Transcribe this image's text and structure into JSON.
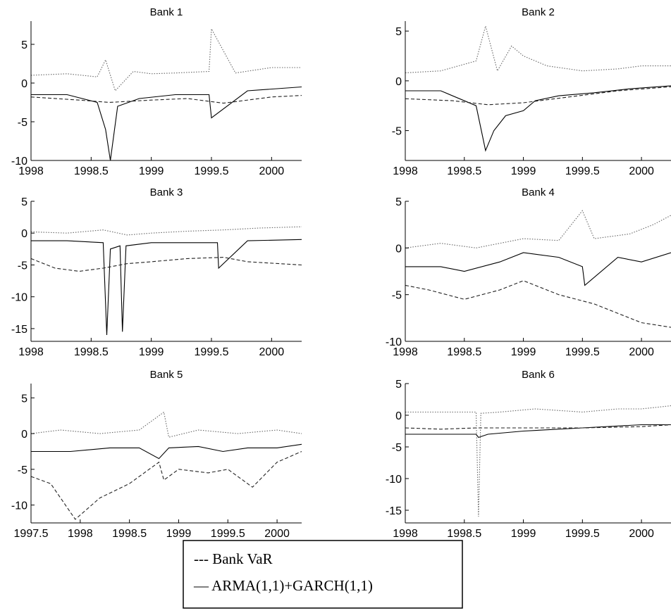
{
  "legend": {
    "entries": [
      {
        "label": "--- Bank VaR",
        "style": "dashed"
      },
      {
        "label": "— ARMA(1,1)+GARCH(1,1)",
        "style": "solid"
      }
    ]
  },
  "chart_data": [
    {
      "type": "line",
      "title": "Bank 1",
      "xlim": [
        1998,
        2000.25
      ],
      "ylim": [
        -10,
        8
      ],
      "xticks": [
        1998,
        1998.5,
        1999,
        1999.5,
        2000
      ],
      "xtick_labels": [
        "1998",
        "1998.5",
        "1999",
        "1999.5",
        "2000"
      ],
      "yticks": [
        5,
        0,
        -5,
        -10
      ],
      "ytick_labels": [
        "5",
        "0",
        "-5",
        "-10"
      ],
      "series": [
        {
          "style": "dotted",
          "x": [
            1998,
            1998.3,
            1998.55,
            1998.62,
            1998.7,
            1998.85,
            1999.0,
            1999.2,
            1999.48,
            1999.5,
            1999.7,
            2000.0,
            2000.25
          ],
          "y": [
            1.0,
            1.2,
            0.8,
            3.0,
            -1.0,
            1.5,
            1.2,
            1.3,
            1.5,
            7.0,
            1.3,
            2.0,
            2.0
          ]
        },
        {
          "style": "solid",
          "x": [
            1998,
            1998.3,
            1998.55,
            1998.62,
            1998.66,
            1998.72,
            1998.9,
            1999.2,
            1999.48,
            1999.5,
            1999.8,
            2000.25
          ],
          "y": [
            -1.5,
            -1.5,
            -2.5,
            -6.0,
            -10.0,
            -3.0,
            -2.0,
            -1.5,
            -1.5,
            -4.5,
            -1.0,
            -0.5
          ]
        },
        {
          "style": "dashed",
          "x": [
            1998,
            1998.4,
            1998.65,
            1999.0,
            1999.3,
            1999.6,
            2000.0,
            2000.25
          ],
          "y": [
            -1.8,
            -2.2,
            -2.5,
            -2.2,
            -2.0,
            -2.6,
            -1.8,
            -1.6
          ]
        }
      ]
    },
    {
      "type": "line",
      "title": "Bank 2",
      "xlim": [
        1998,
        2000.25
      ],
      "ylim": [
        -8,
        6
      ],
      "xticks": [
        1998,
        1998.5,
        1999,
        1999.5,
        2000
      ],
      "xtick_labels": [
        "1998",
        "1998.5",
        "1999",
        "1999.5",
        "2000"
      ],
      "yticks": [
        5,
        0,
        -5
      ],
      "ytick_labels": [
        "5",
        "0",
        "-5"
      ],
      "series": [
        {
          "style": "dotted",
          "x": [
            1998,
            1998.3,
            1998.6,
            1998.68,
            1998.78,
            1998.9,
            1999.0,
            1999.2,
            1999.5,
            1999.8,
            2000.0,
            2000.25
          ],
          "y": [
            0.8,
            1.0,
            2.0,
            5.5,
            1.0,
            3.5,
            2.5,
            1.5,
            1.0,
            1.2,
            1.5,
            1.5
          ]
        },
        {
          "style": "solid",
          "x": [
            1998,
            1998.3,
            1998.6,
            1998.68,
            1998.75,
            1998.85,
            1999.0,
            1999.1,
            1999.3,
            1999.6,
            1999.9,
            2000.25
          ],
          "y": [
            -1.0,
            -1.0,
            -2.5,
            -7.0,
            -5.0,
            -3.5,
            -3.0,
            -2.0,
            -1.5,
            -1.2,
            -0.8,
            -0.5
          ]
        },
        {
          "style": "dashed",
          "x": [
            1998,
            1998.4,
            1998.7,
            1999.0,
            1999.4,
            1999.8,
            2000.25
          ],
          "y": [
            -1.8,
            -2.0,
            -2.4,
            -2.2,
            -1.6,
            -1.0,
            -0.6
          ]
        }
      ]
    },
    {
      "type": "line",
      "title": "Bank 3",
      "xlim": [
        1998,
        2000.25
      ],
      "ylim": [
        -17,
        5
      ],
      "xticks": [
        1998,
        1998.5,
        1999,
        1999.5,
        2000
      ],
      "xtick_labels": [
        "1998",
        "1998.5",
        "1999",
        "1999.5",
        "2000"
      ],
      "yticks": [
        5,
        0,
        -5,
        -10,
        -15
      ],
      "ytick_labels": [
        "5",
        "0",
        "-5",
        "-10",
        "-15"
      ],
      "series": [
        {
          "style": "dotted",
          "x": [
            1998,
            1998.3,
            1998.6,
            1998.8,
            1999.0,
            1999.3,
            1999.6,
            1999.9,
            2000.25
          ],
          "y": [
            0.2,
            0.0,
            0.5,
            -0.3,
            0.0,
            0.3,
            0.5,
            0.8,
            1.0
          ]
        },
        {
          "style": "solid",
          "x": [
            1998,
            1998.3,
            1998.6,
            1998.63,
            1998.66,
            1998.74,
            1998.76,
            1998.79,
            1999.0,
            1999.3,
            1999.55,
            1999.56,
            1999.8,
            2000.25
          ],
          "y": [
            -1.2,
            -1.2,
            -1.5,
            -16.0,
            -2.5,
            -2.0,
            -15.5,
            -2.0,
            -1.5,
            -1.5,
            -1.5,
            -5.5,
            -1.2,
            -1.0
          ]
        },
        {
          "style": "dashed",
          "x": [
            1998,
            1998.2,
            1998.4,
            1998.6,
            1998.8,
            1999.0,
            1999.3,
            1999.6,
            1999.8,
            2000.25
          ],
          "y": [
            -4.0,
            -5.5,
            -6.0,
            -5.5,
            -4.8,
            -4.5,
            -4.0,
            -3.8,
            -4.5,
            -5.0
          ]
        }
      ]
    },
    {
      "type": "line",
      "title": "Bank 4",
      "xlim": [
        1998,
        2000.25
      ],
      "ylim": [
        -10,
        5
      ],
      "xticks": [
        1998,
        1998.5,
        1999,
        1999.5,
        2000
      ],
      "xtick_labels": [
        "1998",
        "1998.5",
        "1999",
        "1999.5",
        "2000"
      ],
      "yticks": [
        5,
        0,
        -5,
        -10
      ],
      "ytick_labels": [
        "5",
        "0",
        "-5",
        "-10"
      ],
      "series": [
        {
          "style": "dotted",
          "x": [
            1998,
            1998.3,
            1998.6,
            1999.0,
            1999.3,
            1999.5,
            1999.6,
            1999.9,
            2000.1,
            2000.25
          ],
          "y": [
            0.0,
            0.5,
            0.0,
            1.0,
            0.8,
            4.0,
            1.0,
            1.5,
            2.5,
            3.5
          ]
        },
        {
          "style": "solid",
          "x": [
            1998,
            1998.3,
            1998.5,
            1998.8,
            1999.0,
            1999.3,
            1999.5,
            1999.52,
            1999.8,
            2000.0,
            2000.25
          ],
          "y": [
            -2.0,
            -2.0,
            -2.5,
            -1.5,
            -0.5,
            -1.0,
            -2.0,
            -4.0,
            -1.0,
            -1.5,
            -0.5
          ]
        },
        {
          "style": "dashed",
          "x": [
            1998,
            1998.2,
            1998.5,
            1998.8,
            1999.0,
            1999.3,
            1999.6,
            1999.8,
            2000.0,
            2000.25
          ],
          "y": [
            -4.0,
            -4.5,
            -5.5,
            -4.5,
            -3.5,
            -5.0,
            -6.0,
            -7.0,
            -8.0,
            -8.5
          ]
        }
      ]
    },
    {
      "type": "line",
      "title": "Bank 5",
      "xlim": [
        1997.5,
        2000.25
      ],
      "ylim": [
        -12.5,
        7
      ],
      "xticks": [
        1997.5,
        1998,
        1998.5,
        1999,
        1999.5,
        2000
      ],
      "xtick_labels": [
        "1997.5",
        "1998",
        "1998.5",
        "1999",
        "1999.5",
        "2000"
      ],
      "yticks": [
        5,
        0,
        -5,
        -10
      ],
      "ytick_labels": [
        "5",
        "0",
        "-5",
        "-10"
      ],
      "series": [
        {
          "style": "dotted",
          "x": [
            1997.5,
            1997.8,
            1998.2,
            1998.6,
            1998.85,
            1998.9,
            1999.2,
            1999.6,
            2000.0,
            2000.25
          ],
          "y": [
            0.0,
            0.5,
            0.0,
            0.5,
            3.0,
            -0.5,
            0.5,
            0.0,
            0.5,
            0.0
          ]
        },
        {
          "style": "solid",
          "x": [
            1997.5,
            1997.9,
            1998.3,
            1998.6,
            1998.8,
            1998.9,
            1999.2,
            1999.45,
            1999.7,
            2000.0,
            2000.25
          ],
          "y": [
            -2.5,
            -2.5,
            -2.0,
            -2.0,
            -3.5,
            -2.0,
            -1.8,
            -2.5,
            -2.0,
            -2.0,
            -1.5
          ]
        },
        {
          "style": "dashed",
          "x": [
            1997.5,
            1997.7,
            1997.95,
            1998.2,
            1998.5,
            1998.8,
            1998.85,
            1999.0,
            1999.3,
            1999.5,
            1999.75,
            2000.0,
            2000.25
          ],
          "y": [
            -6.0,
            -7.0,
            -12.0,
            -9.0,
            -7.0,
            -4.0,
            -6.5,
            -5.0,
            -5.5,
            -5.0,
            -7.5,
            -4.0,
            -2.5
          ]
        }
      ]
    },
    {
      "type": "line",
      "title": "Bank 6",
      "xlim": [
        1998,
        2000.25
      ],
      "ylim": [
        -17,
        5
      ],
      "xticks": [
        1998,
        1998.5,
        1999,
        1999.5,
        2000
      ],
      "xtick_labels": [
        "1998",
        "1998.5",
        "1999",
        "1999.5",
        "2000"
      ],
      "yticks": [
        5,
        0,
        -5,
        -10,
        -15
      ],
      "ytick_labels": [
        "5",
        "0",
        "-5",
        "-10",
        "-15"
      ],
      "series": [
        {
          "style": "dotted",
          "x": [
            1998,
            1998.3,
            1998.6,
            1998.62,
            1998.64,
            1998.8,
            1999.1,
            1999.5,
            1999.8,
            2000.0,
            2000.25
          ],
          "y": [
            0.5,
            0.5,
            0.5,
            -16.0,
            0.3,
            0.5,
            1.0,
            0.5,
            1.0,
            1.0,
            1.5
          ]
        },
        {
          "style": "solid",
          "x": [
            1998,
            1998.3,
            1998.6,
            1998.62,
            1998.7,
            1999.0,
            1999.5,
            2000.0,
            2000.25
          ],
          "y": [
            -3.0,
            -3.0,
            -3.0,
            -3.5,
            -3.0,
            -2.5,
            -2.0,
            -1.5,
            -1.5
          ]
        },
        {
          "style": "dashed",
          "x": [
            1998,
            1998.3,
            1998.6,
            1999.0,
            1999.5,
            2000.0,
            2000.25
          ],
          "y": [
            -2.0,
            -2.2,
            -2.0,
            -2.0,
            -2.0,
            -1.8,
            -1.5
          ]
        }
      ]
    }
  ]
}
